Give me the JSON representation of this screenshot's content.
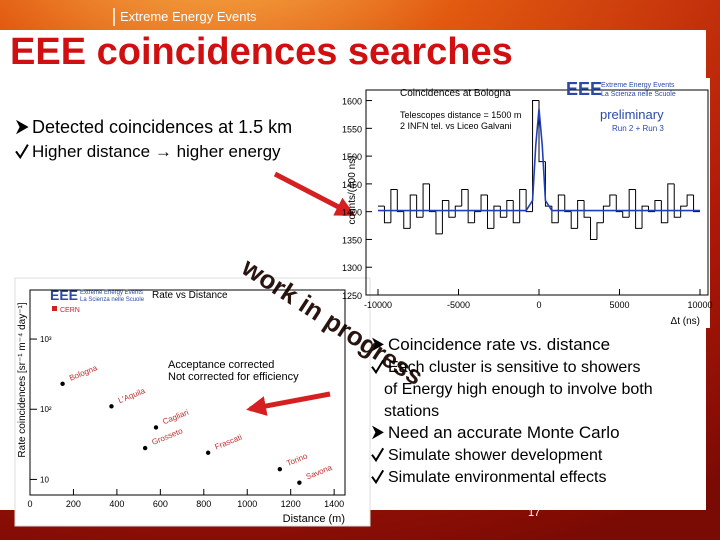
{
  "header": {
    "brand": "Extreme Energy Events",
    "title": "EEE coincidences searches"
  },
  "stamp": "work in progress",
  "page_number": "17",
  "top_bullets": [
    {
      "kind": "arrow",
      "lines": [
        "Detected coincidences at 1.5 km"
      ]
    },
    {
      "kind": "check",
      "lines": [
        "Higher distance → higher energy"
      ]
    }
  ],
  "right_bullets": [
    {
      "kind": "arrow",
      "lines": [
        "Coincidence rate vs. distance"
      ]
    },
    {
      "kind": "check",
      "lines": [
        "Each cluster is sensitive to showers",
        "of Energy high enough to involve both",
        "stations"
      ]
    },
    {
      "kind": "arrow",
      "lines": [
        "Need an accurate Monte Carlo"
      ]
    },
    {
      "kind": "check",
      "lines": [
        "Simulate shower development"
      ]
    },
    {
      "kind": "check",
      "lines": [
        "Simulate environmental effects"
      ]
    }
  ],
  "chart_data": [
    {
      "type": "histogram",
      "title": "Coincidences at Bologna",
      "logo": "EEE",
      "logo_line1": "Extreme Energy Events",
      "logo_line2": "La Scienza nelle Scuole",
      "annotations": [
        "Telescopes distance = 1500 m",
        "2 INFN tel. vs Liceo Galvani"
      ],
      "status": "preliminary",
      "runs": "Run 2 + Run 3",
      "xlabel": "Δt (ns)",
      "ylabel": "counts/(400 ns)",
      "bins": [
        -10000,
        -9600,
        -9200,
        -8800,
        -8400,
        -8000,
        -7600,
        -7200,
        -6800,
        -6400,
        -6000,
        -5600,
        -5200,
        -4800,
        -4400,
        -4000,
        -3600,
        -3200,
        -2800,
        -2400,
        -2000,
        -1600,
        -1200,
        -800,
        -400,
        0,
        400,
        800,
        1200,
        1600,
        2000,
        2400,
        2800,
        3200,
        3600,
        4000,
        4400,
        4800,
        5200,
        5600,
        6000,
        6400,
        6800,
        7200,
        7600,
        8000,
        8400,
        8800,
        9200,
        9600,
        10000
      ],
      "counts": [
        1410,
        1380,
        1440,
        1400,
        1370,
        1430,
        1390,
        1450,
        1400,
        1360,
        1420,
        1390,
        1410,
        1440,
        1380,
        1400,
        1430,
        1370,
        1410,
        1390,
        1420,
        1380,
        1440,
        1400,
        1600,
        1490,
        1410,
        1380,
        1430,
        1400,
        1370,
        1420,
        1390,
        1350,
        1380,
        1410,
        1430,
        1400,
        1390,
        1440,
        1370,
        1410,
        1400,
        1420,
        1380,
        1450,
        1390,
        1410,
        1430,
        1400
      ],
      "color": "#000000",
      "fit": {
        "color": "#1f3fbf",
        "x": [
          -10000,
          -800,
          -400,
          -200,
          0,
          200,
          400,
          800,
          10000
        ],
        "values": [
          1402,
          1402,
          1420,
          1520,
          1585,
          1520,
          1420,
          1402,
          1402
        ]
      },
      "xlim": [
        -10000,
        10000
      ],
      "ylim": [
        1250,
        1610
      ],
      "xticks": [
        -10000,
        -5000,
        0,
        5000,
        10000
      ],
      "yticks": [
        1250,
        1300,
        1350,
        1400,
        1450,
        1500,
        1550,
        1600
      ]
    },
    {
      "type": "scatter",
      "title": "Rate vs Distance",
      "logo": "EEE",
      "logo_line1": "Extreme Energy Events",
      "logo_line2": "La Scienza nelle Scuole",
      "legend": "CERN",
      "legend_color": "#cc2222",
      "annotations": [
        "Acceptance corrected",
        "Not corrected for efficiency"
      ],
      "xlabel": "Distance (m)",
      "ylabel": "Rate coincidences [sr⁻¹ m⁻⁴ day⁻¹]",
      "log_y": true,
      "x": [
        150,
        375,
        580,
        530,
        820,
        1150,
        1240
      ],
      "values": [
        230,
        110,
        55,
        28,
        24,
        14,
        9
      ],
      "labels": [
        "Bologna",
        "L'Aquila",
        "Cagliari",
        "Grosseto",
        "Frascati",
        "Torino",
        "Savona"
      ],
      "label_color": "#c03030",
      "color": "#000000",
      "xlim": [
        0,
        1450
      ],
      "ylim": [
        6,
        5000
      ],
      "xticks": [
        0,
        200,
        400,
        600,
        800,
        1000,
        1200,
        1400
      ],
      "yticks": [
        10,
        {
          "value": 100,
          "label": "10²"
        },
        {
          "value": 1000,
          "label": "10³"
        }
      ]
    }
  ]
}
